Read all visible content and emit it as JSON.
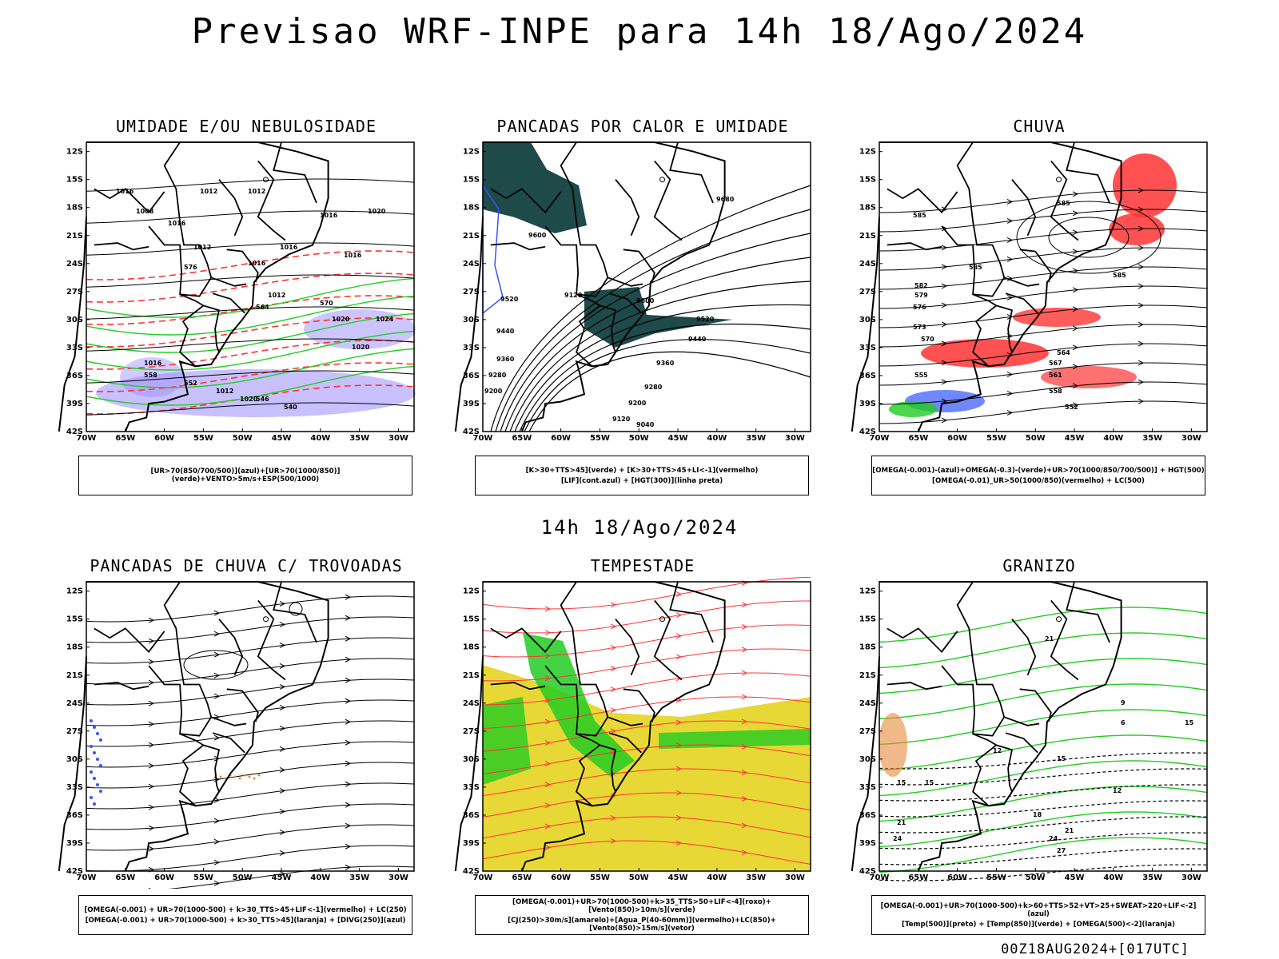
{
  "title": "Previsao WRF-INPE  para 14h 18/Ago/2024",
  "subtitle": "14h 18/Ago/2024",
  "footer": "00Z18AUG2024+[017UTC]",
  "axes": {
    "lat_labels": [
      "12S",
      "15S",
      "18S",
      "21S",
      "24S",
      "27S",
      "30S",
      "33S",
      "36S",
      "39S",
      "42S"
    ],
    "lon_labels": [
      "70W",
      "65W",
      "60W",
      "55W",
      "50W",
      "45W",
      "40W",
      "35W",
      "30W"
    ]
  },
  "colors": {
    "red": "#ff3333",
    "green": "#22cc22",
    "blue": "#3355ff",
    "purple": "#9a8cff",
    "teal": "#1e4a4a",
    "yellow": "#e8d836",
    "orange": "#e8883a"
  },
  "panels": [
    {
      "id": "umidade",
      "title": "UMIDADE E/OU NEBULOSIDADE",
      "legend": [
        "[UR>70(850/700/500)](azul)+[UR>70(1000/850)](verde)+VENTO>5m/s+ESP(500/1000)"
      ],
      "contour_labels": [
        "1012",
        "1012",
        "1012",
        "1016",
        "1008",
        "1016",
        "1016",
        "1012",
        "1016",
        "1016",
        "1020",
        "1020",
        "1024",
        "1020",
        "1016",
        "1012",
        "1016",
        "1020",
        "576",
        "570",
        "564",
        "558",
        "552",
        "546",
        "540"
      ]
    },
    {
      "id": "pancadas-calor",
      "title": "PANCADAS POR CALOR E UMIDADE",
      "legend": [
        "[K>30+TTS>45](verde) + [K>30+TTS>45+LI<-1](vermelho)",
        "[LIF](cont.azul) + [HGT(300)](linha preta)"
      ],
      "contour_labels": [
        "9680",
        "9600",
        "9600",
        "9520",
        "9520",
        "9440",
        "9440",
        "9360",
        "9360",
        "9280",
        "9280",
        "9200",
        "9200",
        "9120",
        "9120",
        "9040"
      ]
    },
    {
      "id": "chuva",
      "title": "CHUVA",
      "legend": [
        "[OMEGA(-0.001)-(azul)+OMEGA(-0.3)-(verde)+UR>70(1000/850/700/500)] + HGT(500)",
        "[OMEGA(-0.01)_UR>50(1000/850)(vermelho) + LC(500)"
      ],
      "contour_labels": [
        "585",
        "585",
        "585",
        "585",
        "582",
        "579",
        "576",
        "573",
        "570",
        "567",
        "564",
        "561",
        "558",
        "555",
        "552"
      ]
    },
    {
      "id": "trovoadas",
      "title": "PANCADAS DE CHUVA C/ TROVOADAS",
      "legend": [
        "[OMEGA(-0.001) + UR>70(1000-500) + k>30_TTS>45+LIF<-1](vermelho) + LC(250)",
        "[OMEGA(-0.001) + UR>70(1000-500) + k>30_TTS>45](laranja) + [DIVG(250)](azul)"
      ],
      "contour_labels": []
    },
    {
      "id": "tempestade",
      "title": "TEMPESTADE",
      "legend": [
        "[OMEGA(-0.001)+UR>70(1000-500)+k>35_TTS>50+LIF<-4](roxo)+[Vento(850)>10m/s](verde)",
        "[CJ(250)>30m/s](amarelo)+[Agua_P(40-60mm)](vermelho)+LC(850)+[Vento(850)>15m/s](vetor)"
      ],
      "contour_labels": []
    },
    {
      "id": "granizo",
      "title": "GRANIZO",
      "legend": [
        "[OMEGA(-0.001)+UR>70(1000-500)+k>60+TTS>52+VT>25+SWEAT>220+LIF<-2](azul)",
        "[Temp(500)](preto) + [Temp(850)](verde) + [OMEGA(500)<-2](laranja)"
      ],
      "contour_labels": [
        "21",
        "15",
        "12",
        "9",
        "6",
        "15",
        "12",
        "15",
        "18",
        "21",
        "24",
        "27",
        "15",
        "21",
        "24"
      ]
    }
  ]
}
